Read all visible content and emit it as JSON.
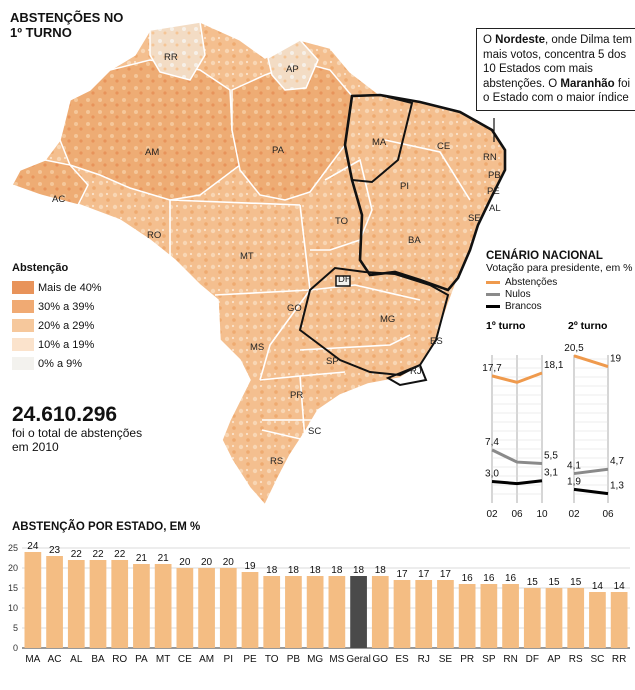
{
  "title_lines": [
    "ABSTENÇÕES NO",
    "1º TURNO"
  ],
  "callout": {
    "text1": "O ",
    "bold1": "Nordeste",
    "text2": ", onde Dilma tem mais votos, concentra 5 dos 10 Estados com mais abstenções. O ",
    "bold2": "Maranhão",
    "text3": " foi o Estado com o maior índice"
  },
  "legend": {
    "title": "Abstenção",
    "items": [
      {
        "label": "Mais de 40%",
        "color": "#e8935a"
      },
      {
        "label": "30% a 39%",
        "color": "#f0aa73"
      },
      {
        "label": "20% a 29%",
        "color": "#f6c89c"
      },
      {
        "label": "10% a 19%",
        "color": "#fbe3cc"
      },
      {
        "label": "0% a 9%",
        "color": "#f3f2ee"
      }
    ]
  },
  "total": {
    "number": "24.610.296",
    "caption": "foi o total de abstenções em 2010"
  },
  "states": [
    "RR",
    "AP",
    "AM",
    "PA",
    "MA",
    "CE",
    "RN",
    "PB",
    "PE",
    "PI",
    "AL",
    "SE",
    "AC",
    "RO",
    "TO",
    "BA",
    "MT",
    "DF",
    "GO",
    "MG",
    "ES",
    "MS",
    "SP",
    "RJ",
    "PR",
    "SC",
    "RS"
  ],
  "cenario": {
    "title": "CENÁRIO NACIONAL",
    "subtitle": "Votação para presidente, em %",
    "series": [
      {
        "name": "Abstenções",
        "color": "#ef9a4d"
      },
      {
        "name": "Nulos",
        "color": "#8a8a8a"
      },
      {
        "name": "Brancos",
        "color": "#000000"
      }
    ],
    "turno1": {
      "label": "1º turno",
      "x": [
        "02",
        "06",
        "10"
      ],
      "abstencoes": [
        17.7,
        16.8,
        18.1
      ],
      "abstencoes_labels": [
        "17,7",
        "18,1"
      ],
      "nulos": [
        7.4,
        5.7,
        5.5
      ],
      "nulos_labels": [
        "7,4",
        "5,5"
      ],
      "brancos": [
        3.0,
        2.7,
        3.1
      ],
      "brancos_labels": [
        "3,0",
        "3,1"
      ]
    },
    "turno2": {
      "label": "2º turno",
      "x": [
        "02",
        "06"
      ],
      "abstencoes": [
        20.5,
        19
      ],
      "abstencoes_labels": [
        "20,5",
        "19"
      ],
      "nulos": [
        4.1,
        4.7
      ],
      "nulos_labels": [
        "4,1",
        "4,7"
      ],
      "brancos": [
        1.9,
        1.3
      ],
      "brancos_labels": [
        "1,9",
        "1,3"
      ]
    }
  },
  "chart_data": {
    "type": "bar",
    "title": "ABSTENÇÃO POR ESTADO, EM %",
    "categories": [
      "MA",
      "AC",
      "AL",
      "BA",
      "RO",
      "PA",
      "MT",
      "CE",
      "AM",
      "PI",
      "PE",
      "TO",
      "PB",
      "MG",
      "MS",
      "Geral",
      "GO",
      "ES",
      "RJ",
      "SE",
      "PR",
      "SP",
      "RN",
      "DF",
      "AP",
      "RS",
      "SC",
      "RR"
    ],
    "values": [
      24,
      23,
      22,
      22,
      22,
      21,
      21,
      20,
      20,
      20,
      19,
      18,
      18,
      18,
      18,
      18,
      18,
      17,
      17,
      17,
      16,
      16,
      16,
      15,
      15,
      15,
      14,
      14
    ],
    "highlight": "Geral",
    "bar_color": "#f4bd83",
    "highlight_color": "#4a4a4a",
    "yticks": [
      0,
      5,
      10,
      15,
      20,
      25
    ],
    "ylim": [
      0,
      25
    ],
    "grid": true
  }
}
